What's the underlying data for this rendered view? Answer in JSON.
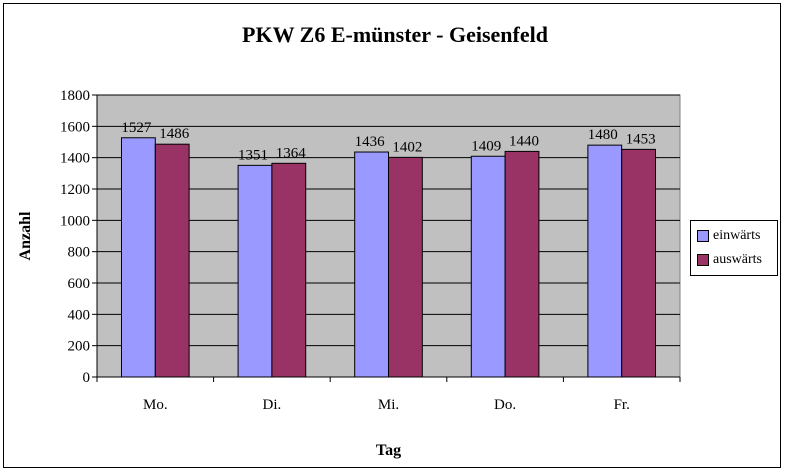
{
  "chart_data": {
    "type": "bar",
    "title": "PKW Z6 E-münster - Geisenfeld",
    "xlabel": "Tag",
    "ylabel": "Anzahl",
    "categories": [
      "Mo.",
      "Di.",
      "Mi.",
      "Do.",
      "Fr."
    ],
    "series": [
      {
        "name": "einwärts",
        "values": [
          1527,
          1351,
          1436,
          1409,
          1480
        ],
        "color": "#9999ff"
      },
      {
        "name": "auswärts",
        "values": [
          1486,
          1364,
          1402,
          1440,
          1453
        ],
        "color": "#993366"
      }
    ],
    "ylim": [
      0,
      1800
    ],
    "yticks": [
      "0",
      "200",
      "400",
      "600",
      "800",
      "1000",
      "1200",
      "1400",
      "1600",
      "1800"
    ],
    "grid": true,
    "plot_background": "#c0c0c0",
    "legend_position": "right"
  }
}
